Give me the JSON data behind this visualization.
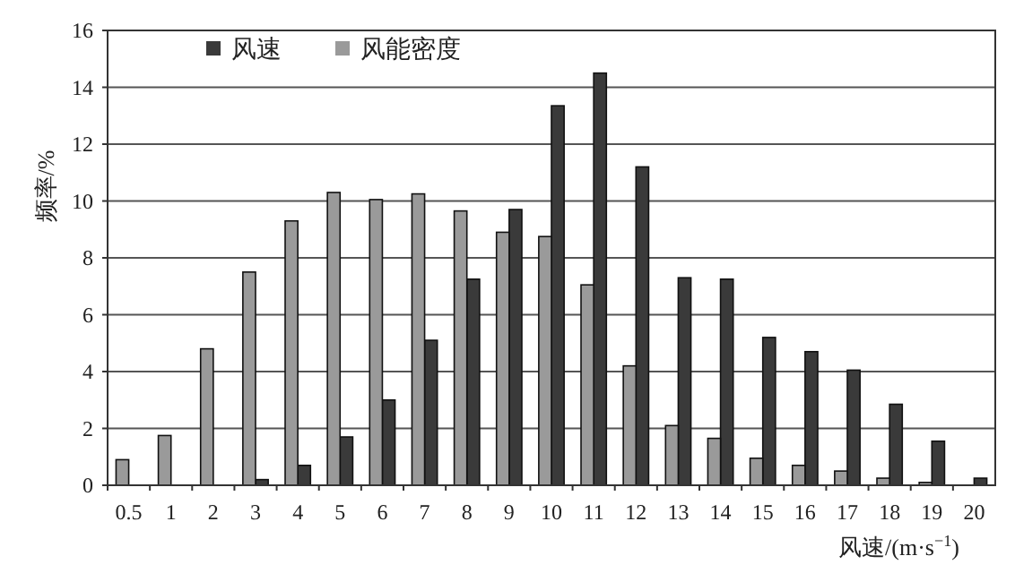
{
  "chart_data": {
    "type": "bar",
    "ylabel": "频率/%",
    "xlabel": "风速/(m·s$^{−1}$)",
    "categories": [
      "0.5",
      "1",
      "2",
      "3",
      "4",
      "5",
      "6",
      "7",
      "8",
      "9",
      "10",
      "11",
      "12",
      "13",
      "14",
      "15",
      "16",
      "17",
      "18",
      "19",
      "20"
    ],
    "series": [
      {
        "name": "风速",
        "color": "#3a3a3a",
        "values": [
          0,
          0,
          0,
          0.2,
          0.7,
          1.7,
          3.0,
          5.1,
          7.25,
          9.7,
          13.35,
          14.5,
          11.2,
          7.3,
          7.25,
          5.2,
          4.7,
          4.05,
          2.85,
          1.55,
          0.25
        ]
      },
      {
        "name": "风能密度",
        "color": "#9a9a9a",
        "values": [
          0.9,
          1.75,
          4.8,
          7.5,
          9.3,
          10.3,
          10.05,
          10.25,
          9.65,
          8.9,
          8.75,
          7.05,
          4.2,
          2.1,
          1.65,
          0.95,
          0.7,
          0.5,
          0.25,
          0.1,
          0
        ]
      }
    ],
    "ylim": [
      0,
      16
    ],
    "yticks": [
      0,
      2,
      4,
      6,
      8,
      10,
      12,
      14,
      16
    ],
    "grid": "y",
    "legend": "top"
  }
}
